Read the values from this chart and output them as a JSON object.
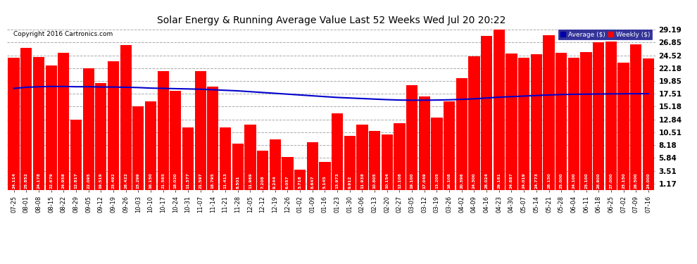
{
  "title": "Solar Energy & Running Average Value Last 52 Weeks Wed Jul 20 20:22",
  "copyright": "Copyright 2016 Cartronics.com",
  "bar_color": "#ff0000",
  "avg_line_color": "#0000cc",
  "background_color": "#ffffff",
  "plot_bg_color": "#ffffff",
  "legend_avg_color": "#0000aa",
  "legend_weekly_color": "#ff0000",
  "yticks": [
    1.17,
    3.51,
    5.84,
    8.18,
    10.51,
    12.84,
    15.18,
    17.51,
    19.85,
    22.18,
    24.52,
    26.85,
    29.19
  ],
  "categories": [
    "07-25",
    "08-01",
    "08-08",
    "08-15",
    "08-22",
    "08-29",
    "09-05",
    "09-12",
    "09-19",
    "09-26",
    "10-03",
    "10-10",
    "10-17",
    "10-24",
    "10-31",
    "11-07",
    "11-14",
    "11-21",
    "11-28",
    "12-05",
    "12-12",
    "12-19",
    "12-26",
    "01-02",
    "01-09",
    "01-16",
    "01-23",
    "01-30",
    "02-06",
    "02-13",
    "02-20",
    "02-27",
    "03-05",
    "03-12",
    "03-19",
    "03-26",
    "04-02",
    "04-09",
    "04-16",
    "04-23",
    "04-30",
    "05-07",
    "05-14",
    "05-21",
    "05-28",
    "06-04",
    "06-11",
    "06-18",
    "06-25",
    "07-02",
    "07-09",
    "07-16"
  ],
  "values": [
    24.114,
    25.852,
    24.178,
    22.679,
    24.958,
    12.817,
    22.095,
    19.519,
    23.492,
    26.422,
    15.299,
    16.15,
    21.585,
    18.02,
    11.377,
    21.597,
    18.795,
    11.413,
    8.501,
    11.969,
    7.208,
    9.244,
    6.057,
    3.718,
    8.647,
    5.145,
    13.973,
    9.912,
    11.938,
    10.805,
    10.154,
    12.108,
    19.1,
    17.049,
    13.205,
    16.108,
    20.396,
    24.3,
    28.024,
    29.181,
    24.887,
    24.019,
    24.773,
    28.15,
    25.0,
    24.1,
    25.1,
    26.9,
    27.0,
    23.15,
    26.5,
    24.0
  ],
  "avg_values": [
    18.5,
    18.7,
    18.8,
    18.85,
    18.85,
    18.8,
    18.8,
    18.75,
    18.75,
    18.7,
    18.65,
    18.55,
    18.5,
    18.45,
    18.4,
    18.35,
    18.25,
    18.15,
    18.05,
    17.9,
    17.75,
    17.6,
    17.45,
    17.3,
    17.15,
    17.0,
    16.85,
    16.75,
    16.65,
    16.55,
    16.45,
    16.38,
    16.35,
    16.35,
    16.38,
    16.42,
    16.5,
    16.6,
    16.75,
    16.9,
    17.0,
    17.1,
    17.2,
    17.3,
    17.38,
    17.42,
    17.45,
    17.48,
    17.5,
    17.52,
    17.53,
    17.53
  ]
}
